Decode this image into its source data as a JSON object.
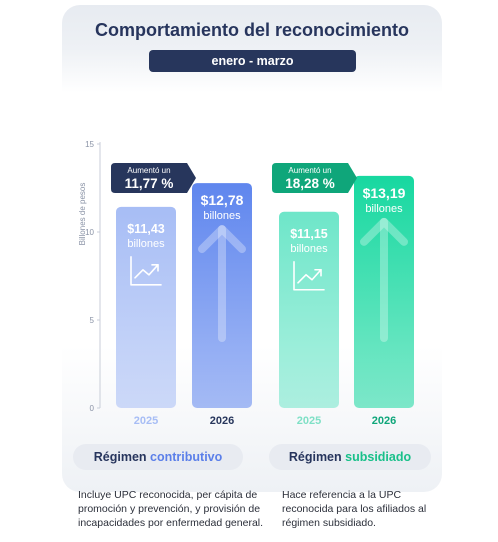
{
  "header": {
    "title": "Comportamiento del reconocimiento",
    "period": "enero - marzo"
  },
  "chart_data": {
    "type": "bar",
    "ylabel": "Billones de pesos",
    "ylim": [
      0,
      15
    ],
    "yticks": [
      0,
      5,
      10,
      15
    ],
    "grid": false,
    "groups": [
      {
        "regime_prefix": "Régimen",
        "regime_name": "contributivo",
        "bars": [
          {
            "year": "2025",
            "value": 11.43,
            "value_label": "$11,43",
            "unit_label": "billones",
            "color": "#a7bdf5",
            "icon": "trend-up-chart-icon"
          },
          {
            "year": "2026",
            "value": 12.78,
            "value_label": "$12,78",
            "unit_label": "billones",
            "color": "#5f86ee",
            "icon": "big-up-arrow-icon"
          }
        ],
        "increase": {
          "label": "Aumentó un",
          "value": "11,77 %",
          "color": "#27365c"
        },
        "year_colors": [
          "#a7bdf5",
          "#27365c"
        ],
        "accent": "#5b7fe9"
      },
      {
        "regime_prefix": "Régimen",
        "regime_name": "subsidiado",
        "bars": [
          {
            "year": "2025",
            "value": 11.15,
            "value_label": "$11,15",
            "unit_label": "billones",
            "color": "#6ee6c9",
            "icon": "trend-up-chart-icon"
          },
          {
            "year": "2026",
            "value": 13.19,
            "value_label": "$13,19",
            "unit_label": "billones",
            "color": "#17d8a0",
            "icon": "big-up-arrow-icon"
          }
        ],
        "increase": {
          "label": "Aumentó un",
          "value": "18,28 %",
          "color": "#0fa67a"
        },
        "year_colors": [
          "#7fe0c6",
          "#0fa67a"
        ],
        "accent": "#19c08a"
      }
    ]
  },
  "notes": {
    "contributivo": "Incluye UPC reconocida, per cápita de promoción y prevención, y provisión de incapacidades por enfermedad general.",
    "subsidiado": "Hace referencia a la UPC reconocida para los afiliados al régimen subsidiado."
  }
}
